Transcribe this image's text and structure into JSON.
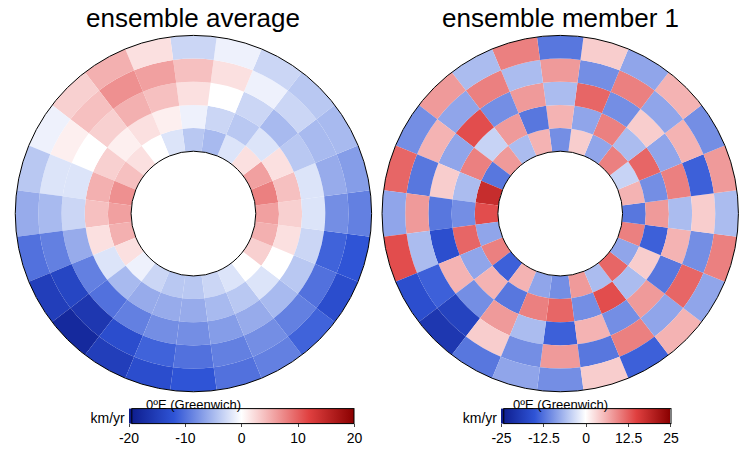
{
  "chart_data": [
    {
      "type": "heatmap",
      "title": "ensemble average",
      "annotation": "0ºE (Greenwich)",
      "theta": [
        0,
        15,
        30,
        45,
        60,
        75,
        90,
        105,
        120,
        135,
        150,
        165,
        180,
        195,
        210,
        225,
        240,
        255,
        270,
        285,
        300,
        315,
        330,
        345
      ],
      "r_edges": [
        0.35,
        0.48,
        0.61,
        0.74,
        0.87,
        1.0
      ],
      "rlim": [
        0.35,
        1.0
      ],
      "cells": [
        [
          -4,
          -3,
          -2,
          0,
          3,
          5,
          6,
          8,
          6,
          2,
          -2,
          -5,
          -4,
          -2,
          0,
          2,
          4,
          7,
          6,
          5,
          2,
          -1,
          -3,
          -4
        ],
        [
          -6,
          -5,
          -4,
          -2,
          0,
          2,
          3,
          4,
          2,
          -2,
          -4,
          -3,
          -1,
          1,
          2,
          1,
          3,
          5,
          4,
          2,
          -2,
          -5,
          -6,
          -6
        ],
        [
          -8,
          -7,
          -6,
          -5,
          -4,
          -3,
          -2,
          -2,
          -4,
          -5,
          -3,
          0,
          2,
          4,
          5,
          3,
          0,
          -2,
          -3,
          -6,
          -9,
          -10,
          -9,
          -8
        ],
        [
          -10,
          -9,
          -8,
          -9,
          -10,
          -11,
          -8,
          -6,
          -5,
          -3,
          -1,
          2,
          4,
          6,
          7,
          4,
          1,
          -2,
          -5,
          -9,
          -14,
          -16,
          -13,
          -11
        ],
        [
          -12,
          -10,
          -9,
          -11,
          -13,
          -12,
          -9,
          -7,
          -5,
          -4,
          -3,
          -1,
          -3,
          2,
          5,
          3,
          -1,
          -4,
          -6,
          -10,
          -15,
          -18,
          -15,
          -13
        ]
      ],
      "colorbar": {
        "range": [
          -20,
          20
        ],
        "ticks": [
          -20,
          -10,
          0,
          10,
          20
        ],
        "title": "km/yr"
      }
    },
    {
      "type": "heatmap",
      "title": "ensemble member 1",
      "annotation": "0ºE (Greenwich)",
      "theta": [
        0,
        15,
        30,
        45,
        60,
        75,
        90,
        105,
        120,
        135,
        150,
        165,
        180,
        195,
        210,
        225,
        240,
        255,
        270,
        285,
        300,
        315,
        330,
        345
      ],
      "r_edges": [
        0.35,
        0.48,
        0.61,
        0.74,
        0.87,
        1.0
      ],
      "rlim": [
        0.35,
        1.0
      ],
      "cells": [
        [
          -10,
          8,
          -6,
          12,
          -8,
          10,
          -12,
          6,
          -4,
          10,
          -8,
          4,
          -10,
          6,
          -6,
          8,
          -12,
          18,
          14,
          -8,
          10,
          -14,
          6,
          -8
        ],
        [
          12,
          -10,
          14,
          -6,
          4,
          -14,
          8,
          -10,
          12,
          -6,
          10,
          -8,
          6,
          -12,
          8,
          -4,
          10,
          -6,
          -10,
          12,
          -8,
          6,
          -12,
          10
        ],
        [
          -14,
          6,
          -10,
          8,
          -12,
          6,
          -6,
          10,
          -8,
          4,
          -10,
          12,
          -6,
          8,
          -10,
          14,
          -8,
          4,
          -12,
          -16,
          6,
          -10,
          8,
          -6
        ],
        [
          8,
          -12,
          10,
          -8,
          12,
          -10,
          4,
          -14,
          6,
          -8,
          10,
          -10,
          8,
          -6,
          10,
          -8,
          6,
          -12,
          8,
          -6,
          -14,
          -18,
          4,
          -10
        ],
        [
          -10,
          4,
          -14,
          6,
          -8,
          10,
          -6,
          8,
          -10,
          6,
          -8,
          4,
          -12,
          10,
          -6,
          8,
          -10,
          12,
          -8,
          14,
          -16,
          -20,
          -12,
          -8
        ]
      ],
      "colorbar": {
        "range": [
          -25,
          25
        ],
        "ticks": [
          -25,
          -12.5,
          0,
          12.5,
          25
        ],
        "title": "km/yr"
      }
    }
  ]
}
